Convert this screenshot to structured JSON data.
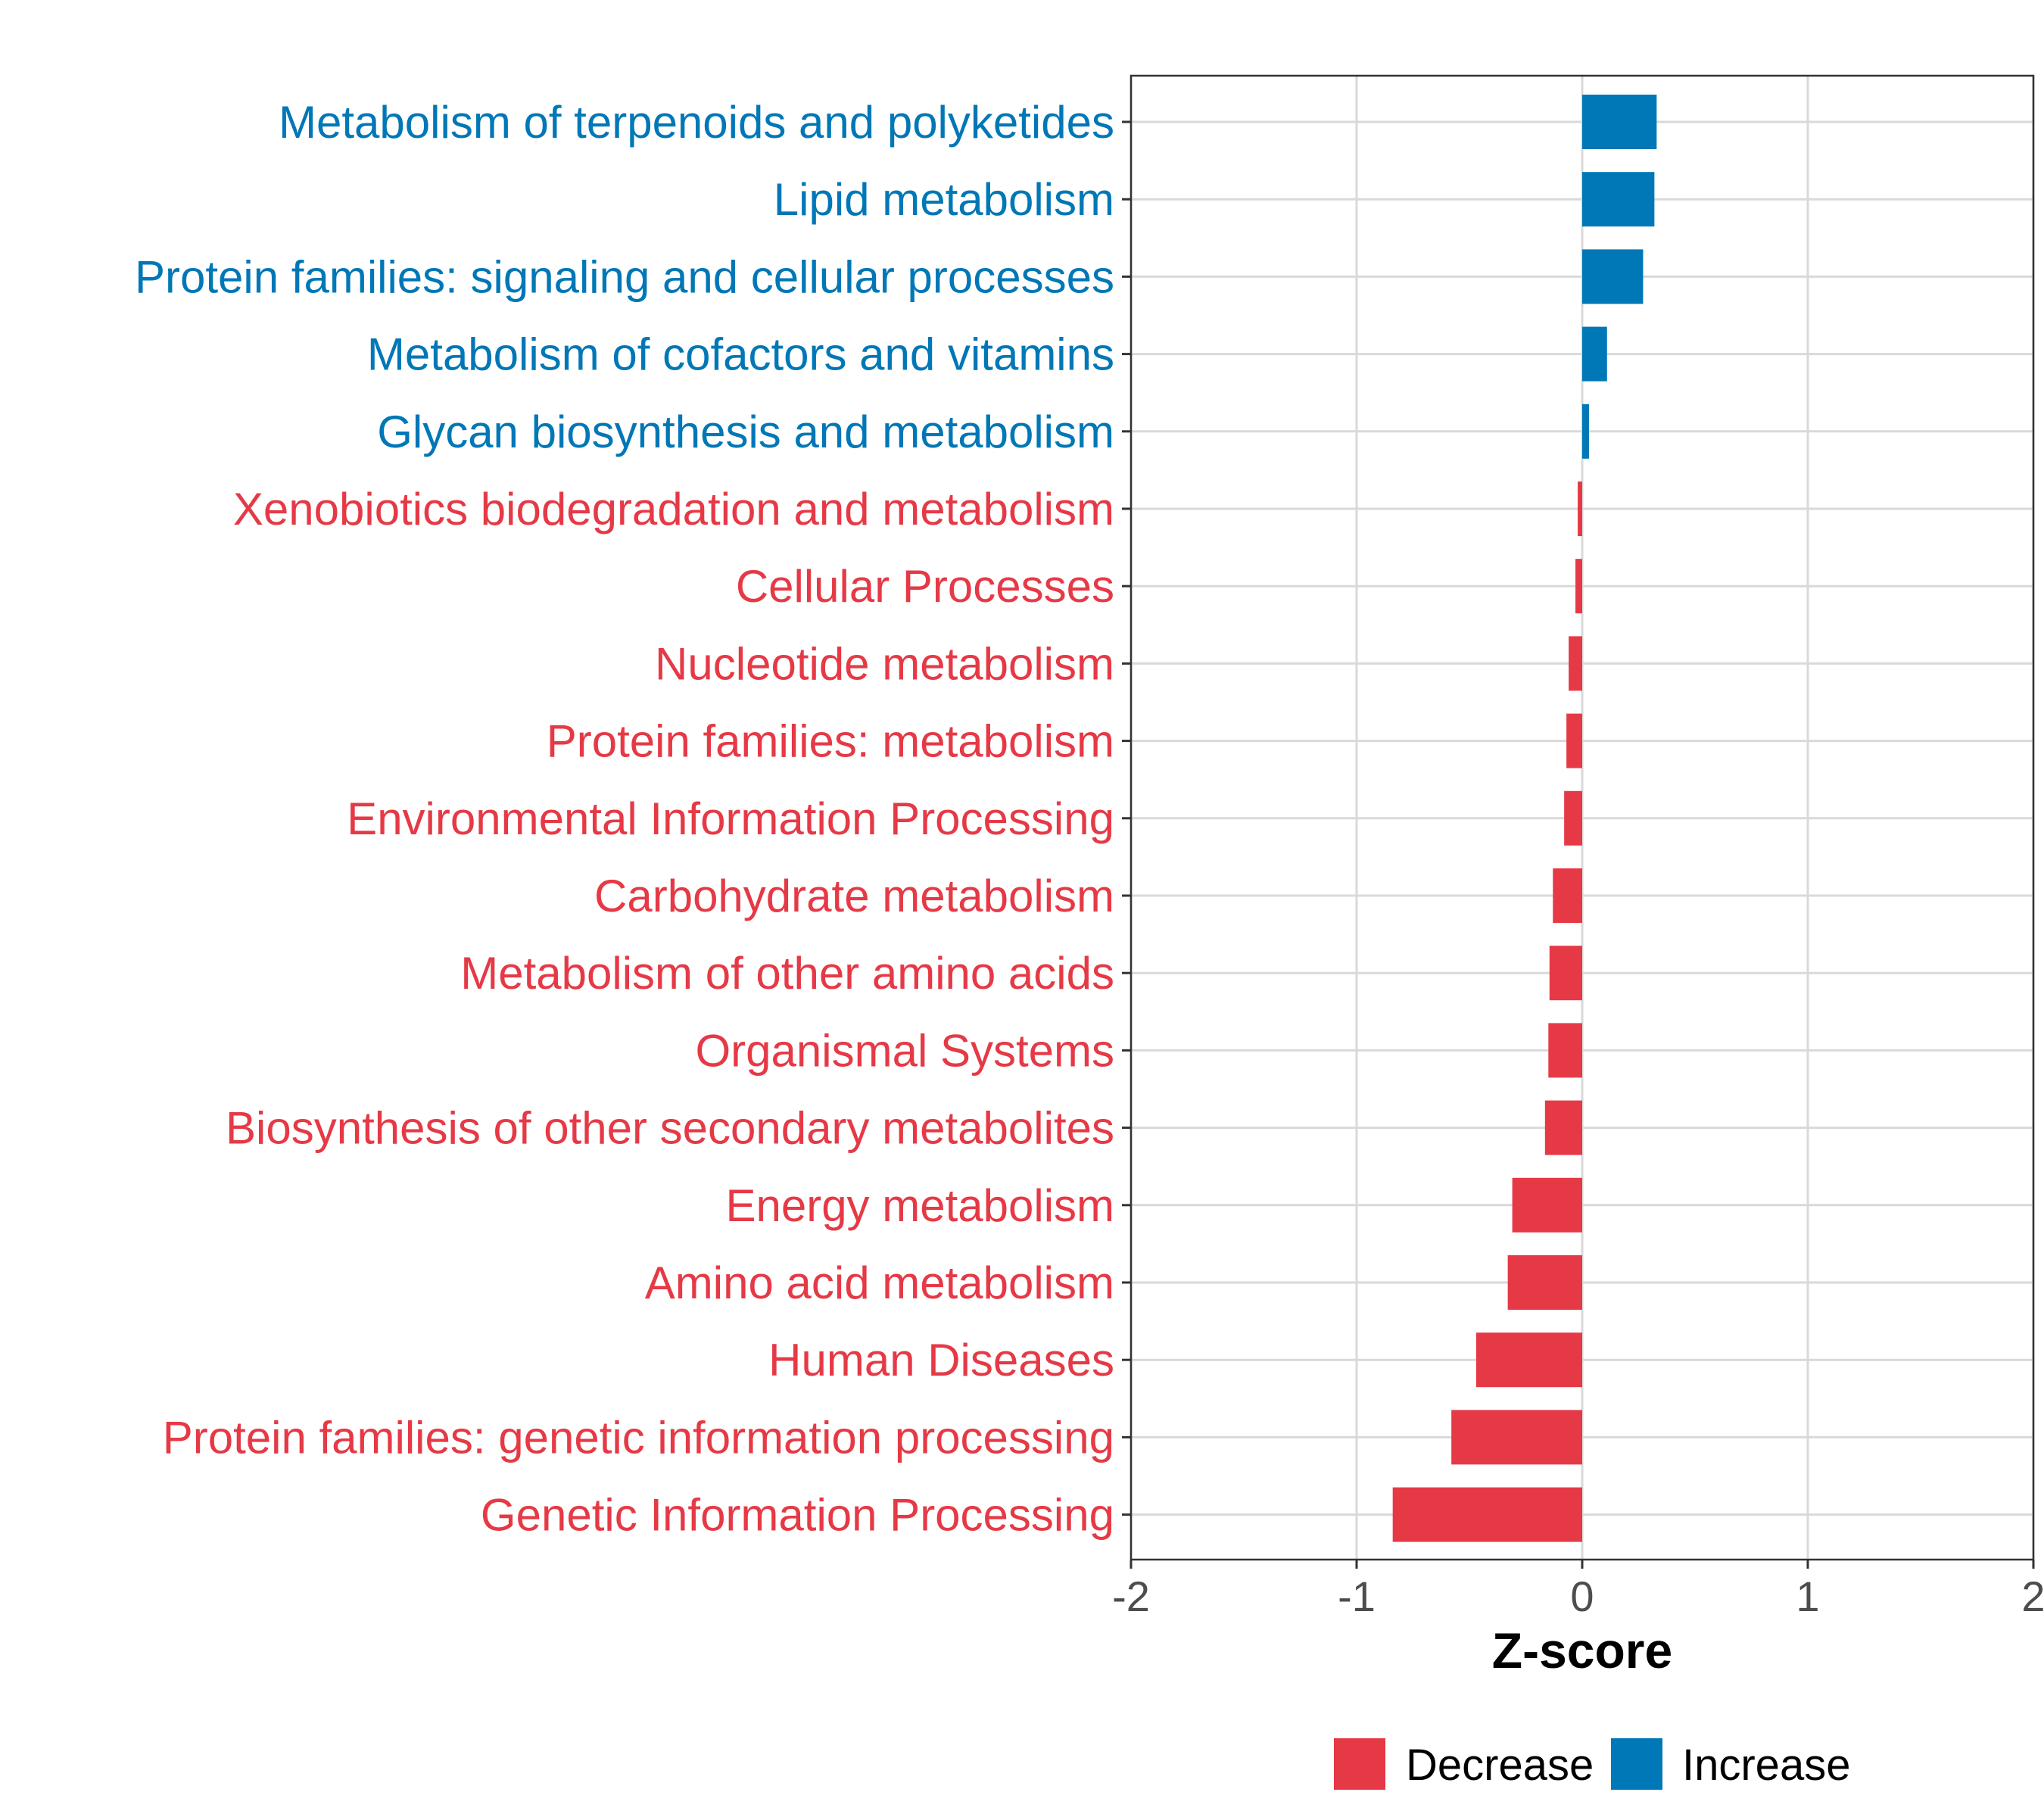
{
  "chart_data": {
    "type": "bar",
    "orientation": "horizontal",
    "title": "",
    "xlabel": "Z-score",
    "ylabel": "",
    "xlim": [
      -2,
      2
    ],
    "xticks": [
      -2,
      -1,
      0,
      1,
      2
    ],
    "xtick_labels": [
      "-2",
      "-1",
      "0",
      "1",
      "2"
    ],
    "grid": true,
    "legend_position": "bottom",
    "colors": {
      "Decrease": "#E63946",
      "Increase": "#0077B6"
    },
    "legend": [
      {
        "label": "Decrease",
        "color": "#E63946"
      },
      {
        "label": "Increase",
        "color": "#0077B6"
      }
    ],
    "categories": [
      "Metabolism of terpenoids and polyketides",
      "Lipid metabolism",
      "Protein families: signaling and cellular processes",
      "Metabolism of cofactors and vitamins",
      "Glycan biosynthesis and metabolism",
      "Xenobiotics biodegradation and metabolism",
      "Cellular Processes",
      "Nucleotide metabolism",
      "Protein families: metabolism",
      "Environmental Information Processing",
      "Carbohydrate metabolism",
      "Metabolism of other amino acids",
      "Organismal Systems",
      "Biosynthesis of other secondary metabolites",
      "Energy metabolism",
      "Amino acid metabolism",
      "Human Diseases",
      "Protein families: genetic information processing",
      "Genetic Information Processing"
    ],
    "values": [
      0.33,
      0.32,
      0.27,
      0.11,
      0.03,
      -0.02,
      -0.03,
      -0.06,
      -0.07,
      -0.08,
      -0.13,
      -0.145,
      -0.15,
      -0.165,
      -0.31,
      -0.33,
      -0.47,
      -0.58,
      -0.84
    ],
    "groups": [
      "Increase",
      "Increase",
      "Increase",
      "Increase",
      "Increase",
      "Decrease",
      "Decrease",
      "Decrease",
      "Decrease",
      "Decrease",
      "Decrease",
      "Decrease",
      "Decrease",
      "Decrease",
      "Decrease",
      "Decrease",
      "Decrease",
      "Decrease",
      "Decrease"
    ]
  }
}
